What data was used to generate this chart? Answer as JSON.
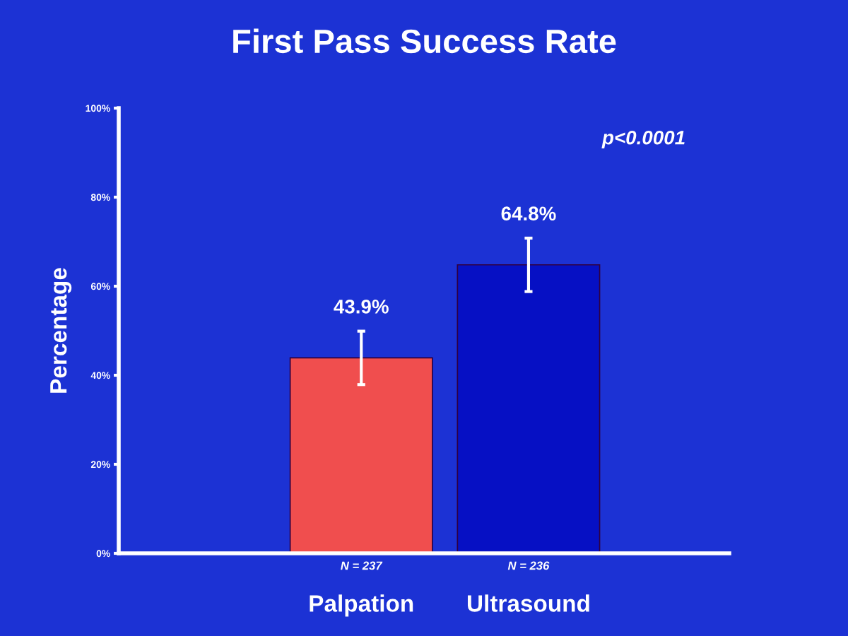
{
  "chart_data": {
    "type": "bar",
    "title": "First Pass Success Rate",
    "ylabel": "Percentage",
    "categories": [
      "Palpation",
      "Ultrasound"
    ],
    "values": [
      43.9,
      64.8
    ],
    "colors": [
      "#f04e4e",
      "#0610c4"
    ],
    "errors": [
      6,
      6
    ],
    "value_labels": [
      "43.9%",
      "64.8%"
    ],
    "ylim": [
      0,
      100
    ],
    "yticks": [
      {
        "value": 0,
        "label": "0%"
      },
      {
        "value": 20,
        "label": "20%"
      },
      {
        "value": 40,
        "label": "40%"
      },
      {
        "value": 60,
        "label": "60%"
      },
      {
        "value": 80,
        "label": "80%"
      },
      {
        "value": 100,
        "label": "100%"
      }
    ],
    "annotations": [
      "p<0.0001",
      "N = 237",
      "N = 236"
    ],
    "grid": false,
    "legend": false
  }
}
